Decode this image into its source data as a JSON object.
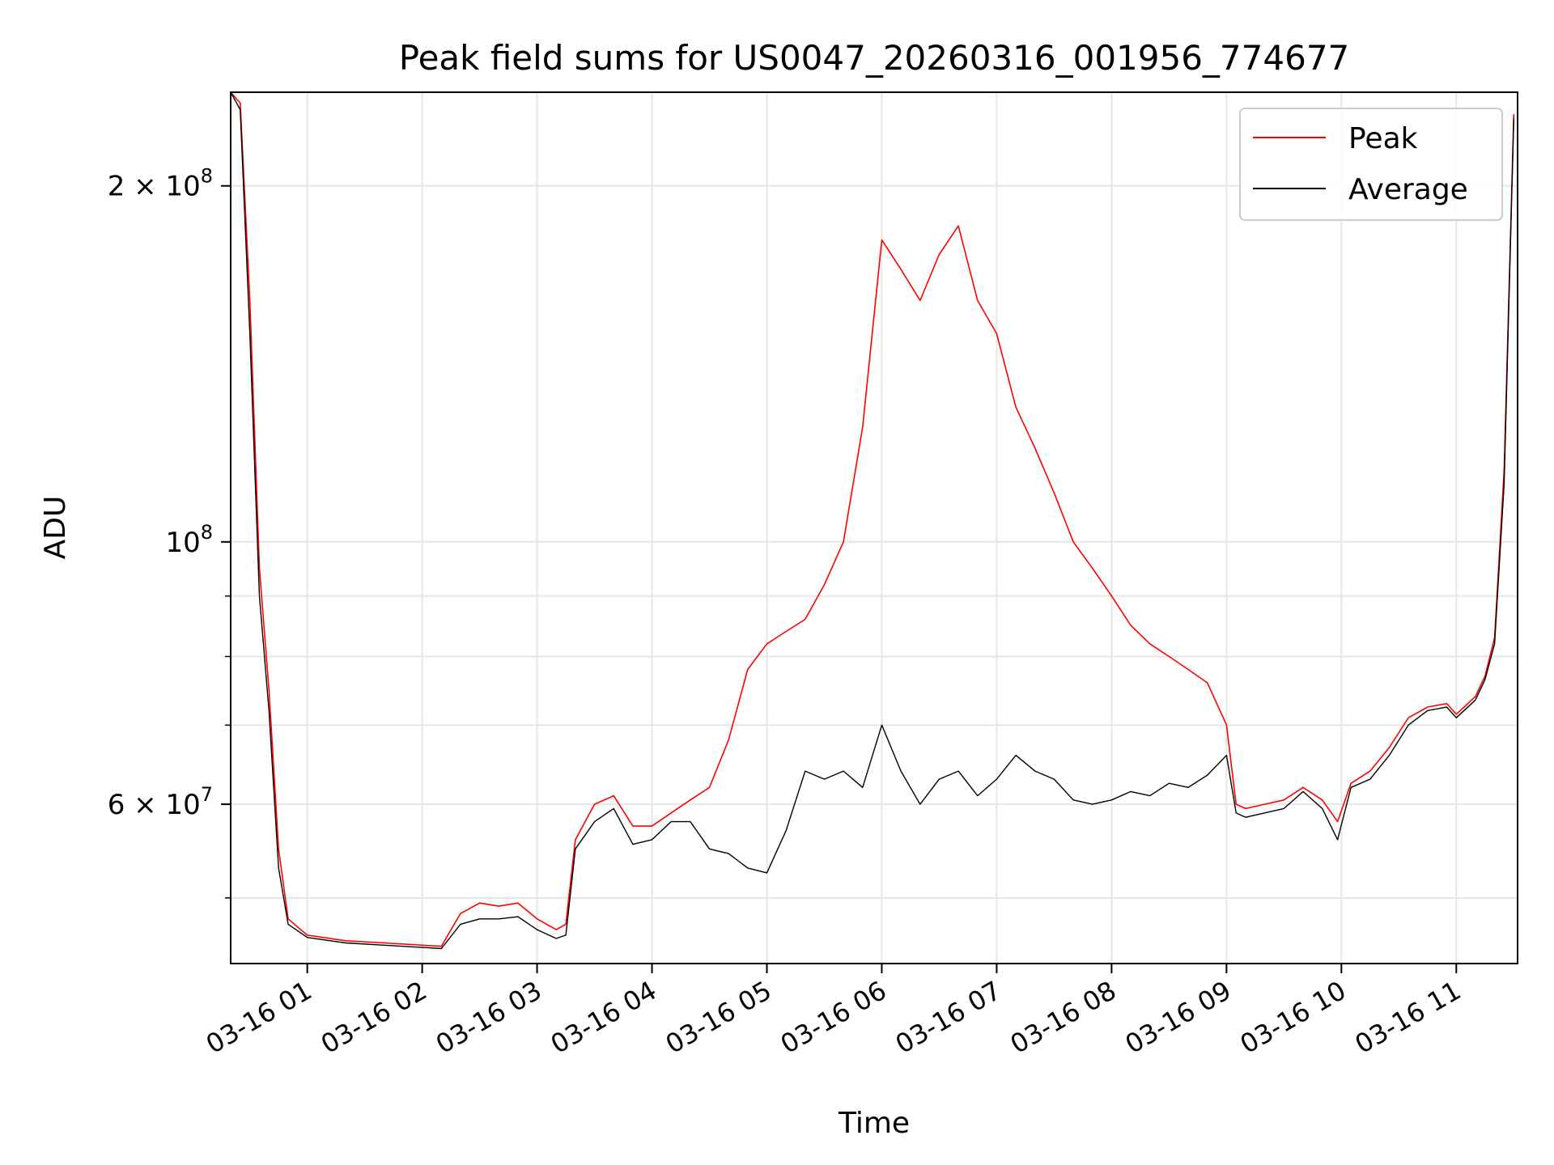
{
  "chart_data": {
    "type": "line",
    "title": "Peak field sums for US0047_20260316_001956_774677",
    "xlabel": "Time",
    "ylabel": "ADU",
    "yscale": "log",
    "ylim": [
      44000000,
      240000000
    ],
    "xlim": [
      "2026-03-16 00:20",
      "2026-03-16 11:32"
    ],
    "grid": true,
    "legend_position": "top-right",
    "x_tick_labels": [
      "03-16 01",
      "03-16 02",
      "03-16 03",
      "03-16 04",
      "03-16 05",
      "03-16 06",
      "03-16 07",
      "03-16 08",
      "03-16 09",
      "03-16 10",
      "03-16 11"
    ],
    "y_tick_labels": [
      {
        "value": 60000000,
        "mantissa": "6",
        "exponent": "7"
      },
      {
        "value": 100000000,
        "mantissa": "",
        "exponent": "8"
      },
      {
        "value": 200000000,
        "mantissa": "2",
        "exponent": "8"
      }
    ],
    "y_tick_base": "10",
    "y_tick_times": "×",
    "x": [
      "00:20",
      "00:25",
      "00:30",
      "00:35",
      "00:40",
      "00:45",
      "00:50",
      "01:00",
      "01:20",
      "01:40",
      "02:00",
      "02:10",
      "02:20",
      "02:30",
      "02:40",
      "02:50",
      "03:00",
      "03:10",
      "03:15",
      "03:20",
      "03:30",
      "03:40",
      "03:50",
      "04:00",
      "04:10",
      "04:20",
      "04:30",
      "04:40",
      "04:50",
      "05:00",
      "05:10",
      "05:20",
      "05:30",
      "05:40",
      "05:50",
      "06:00",
      "06:10",
      "06:20",
      "06:30",
      "06:40",
      "06:50",
      "07:00",
      "07:10",
      "07:20",
      "07:30",
      "07:40",
      "07:50",
      "08:00",
      "08:10",
      "08:20",
      "08:30",
      "08:40",
      "08:50",
      "09:00",
      "09:05",
      "09:10",
      "09:20",
      "09:30",
      "09:40",
      "09:50",
      "09:58",
      "10:05",
      "10:15",
      "10:25",
      "10:35",
      "10:45",
      "10:55",
      "11:00",
      "11:10",
      "11:15",
      "11:20",
      "11:25",
      "11:30"
    ],
    "series": [
      {
        "name": "Peak",
        "color": "#ff0000",
        "values": [
          240000000,
          235000000,
          160000000,
          95000000,
          75000000,
          55000000,
          48000000,
          46500000,
          46000000,
          45800000,
          45600000,
          45500000,
          48500000,
          49500000,
          49200000,
          49500000,
          48000000,
          47000000,
          47500000,
          56000000,
          60000000,
          61000000,
          57500000,
          57500000,
          59000000,
          60500000,
          62000000,
          68000000,
          78000000,
          82000000,
          84000000,
          86000000,
          92000000,
          100000000,
          125000000,
          180000000,
          170000000,
          160000000,
          175000000,
          185000000,
          160000000,
          150000000,
          130000000,
          120000000,
          110000000,
          100000000,
          95000000,
          90000000,
          85000000,
          82000000,
          80000000,
          78000000,
          76000000,
          70000000,
          60000000,
          59500000,
          60000000,
          60500000,
          62000000,
          60500000,
          58000000,
          62500000,
          64000000,
          67000000,
          71000000,
          72500000,
          73000000,
          71500000,
          74000000,
          77000000,
          83000000,
          115000000,
          230000000
        ]
      },
      {
        "name": "Average",
        "color": "#000000",
        "values": [
          240000000,
          232000000,
          150000000,
          90000000,
          72000000,
          53000000,
          47500000,
          46300000,
          45800000,
          45600000,
          45400000,
          45300000,
          47500000,
          48000000,
          48000000,
          48200000,
          47000000,
          46200000,
          46500000,
          55000000,
          58000000,
          59500000,
          55500000,
          56000000,
          58000000,
          58000000,
          55000000,
          54500000,
          53000000,
          52500000,
          57000000,
          64000000,
          63000000,
          64000000,
          62000000,
          70000000,
          64000000,
          60000000,
          63000000,
          64000000,
          61000000,
          63000000,
          66000000,
          64000000,
          63000000,
          60500000,
          60000000,
          60500000,
          61500000,
          61000000,
          62500000,
          62000000,
          63500000,
          66000000,
          59000000,
          58500000,
          59000000,
          59500000,
          61500000,
          59500000,
          56000000,
          62000000,
          63000000,
          66000000,
          70000000,
          72000000,
          72500000,
          71000000,
          73500000,
          76500000,
          82000000,
          112000000,
          228000000
        ]
      }
    ]
  }
}
